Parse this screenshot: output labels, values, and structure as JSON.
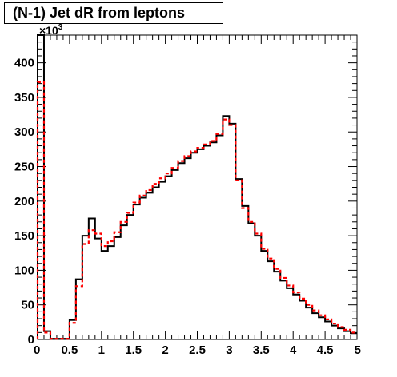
{
  "chart_data": {
    "type": "histogram",
    "title": "(N-1) Jet dR from leptons",
    "xlabel": "",
    "ylabel": "",
    "y_multiplier_label": "×10",
    "y_multiplier_exponent": "3",
    "xlim": [
      0,
      5
    ],
    "ylim": [
      0,
      440
    ],
    "bin_width": 0.1,
    "x_ticks": [
      0,
      0.5,
      1,
      1.5,
      2,
      2.5,
      3,
      3.5,
      4,
      4.5,
      5
    ],
    "x_tick_labels": [
      "0",
      "0.5",
      "1",
      "1.5",
      "2",
      "2.5",
      "3",
      "3.5",
      "4",
      "4.5",
      "5"
    ],
    "y_ticks": [
      0,
      50,
      100,
      150,
      200,
      250,
      300,
      350,
      400
    ],
    "y_tick_labels": [
      "0",
      "50",
      "100",
      "150",
      "200",
      "250",
      "300",
      "350",
      "400"
    ],
    "grid": false,
    "series": [
      {
        "style": "solid",
        "color": "#000000",
        "values": [
          440,
          12,
          1,
          1,
          1,
          28,
          87,
          150,
          175,
          146,
          128,
          135,
          148,
          165,
          180,
          195,
          205,
          212,
          220,
          228,
          236,
          245,
          255,
          262,
          270,
          275,
          280,
          285,
          295,
          323,
          312,
          232,
          193,
          168,
          150,
          128,
          113,
          98,
          85,
          74,
          65,
          56,
          46,
          38,
          32,
          26,
          20,
          16,
          12,
          9
        ]
      },
      {
        "style": "dashed",
        "color": "#ff0000",
        "values": [
          372,
          10,
          1,
          1,
          1,
          24,
          77,
          138,
          158,
          153,
          135,
          142,
          155,
          170,
          183,
          198,
          208,
          216,
          225,
          233,
          240,
          248,
          258,
          265,
          272,
          277,
          282,
          287,
          297,
          318,
          310,
          230,
          190,
          170,
          153,
          131,
          117,
          102,
          89,
          78,
          68,
          59,
          50,
          42,
          35,
          29,
          23,
          18,
          14,
          10
        ]
      }
    ]
  }
}
